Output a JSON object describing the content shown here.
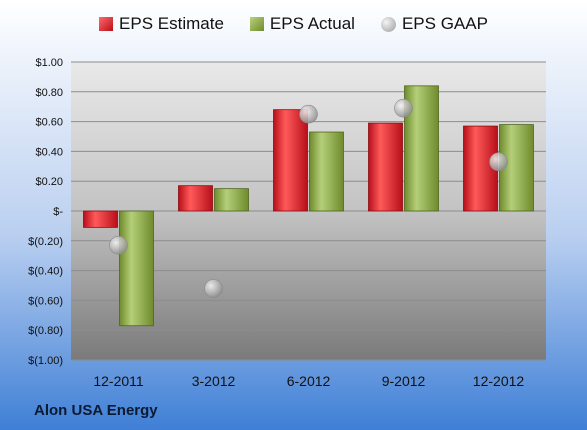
{
  "company": "Alon USA Energy",
  "legend": {
    "estimate": "EPS Estimate",
    "actual": "EPS Actual",
    "gaap": "EPS GAAP"
  },
  "colors": {
    "estimate": "#d9262e",
    "actual": "#8aa844",
    "gaap": "#b8b8b8",
    "background_top": "#ffffff",
    "background_bottom": "#3f7fd6"
  },
  "chart_data": {
    "type": "bar",
    "categories": [
      "12-2011",
      "3-2012",
      "6-2012",
      "9-2012",
      "12-2012"
    ],
    "series": [
      {
        "name": "EPS Estimate",
        "values": [
          -0.11,
          0.17,
          0.68,
          0.59,
          0.57
        ]
      },
      {
        "name": "EPS Actual",
        "values": [
          -0.77,
          0.15,
          0.53,
          0.84,
          0.58
        ]
      },
      {
        "name": "EPS GAAP",
        "values": [
          -0.23,
          -0.52,
          0.65,
          0.69,
          0.33
        ]
      }
    ],
    "ylim": [
      -1.0,
      1.0
    ],
    "yticks": [
      1.0,
      0.8,
      0.6,
      0.4,
      0.2,
      0,
      -0.2,
      -0.4,
      -0.6,
      -0.8,
      -1.0
    ],
    "ytick_labels": [
      "$1.00",
      "$0.80",
      "$0.60",
      "$0.40",
      "$0.20",
      "$-",
      "$(0.20)",
      "$(0.40)",
      "$(0.60)",
      "$(0.80)",
      "$(1.00)"
    ],
    "grid": true,
    "legend_position": "top"
  }
}
